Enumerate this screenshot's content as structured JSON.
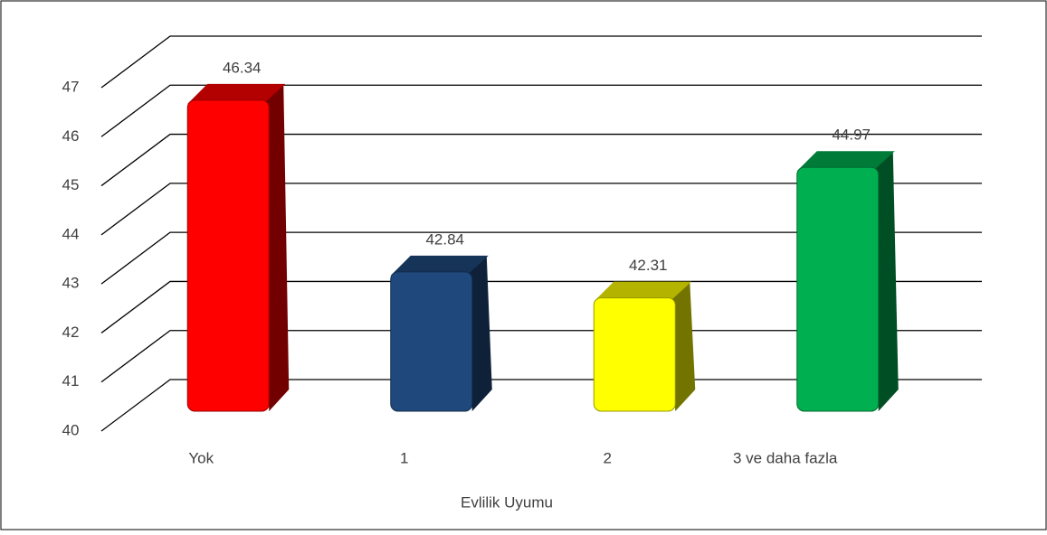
{
  "chart_data": {
    "type": "bar3d",
    "categories": [
      "Yok",
      "1",
      "2",
      "3 ve daha fazla"
    ],
    "values": [
      46.34,
      42.84,
      42.31,
      44.97
    ],
    "colors": [
      "#ff0000",
      "#1f497d",
      "#ffff00",
      "#00b050"
    ],
    "x_label": "Evlilik Uyumu",
    "ylim": [
      40,
      47
    ],
    "yticks": [
      40,
      41,
      42,
      43,
      44,
      45,
      46,
      47
    ],
    "grid": true
  }
}
